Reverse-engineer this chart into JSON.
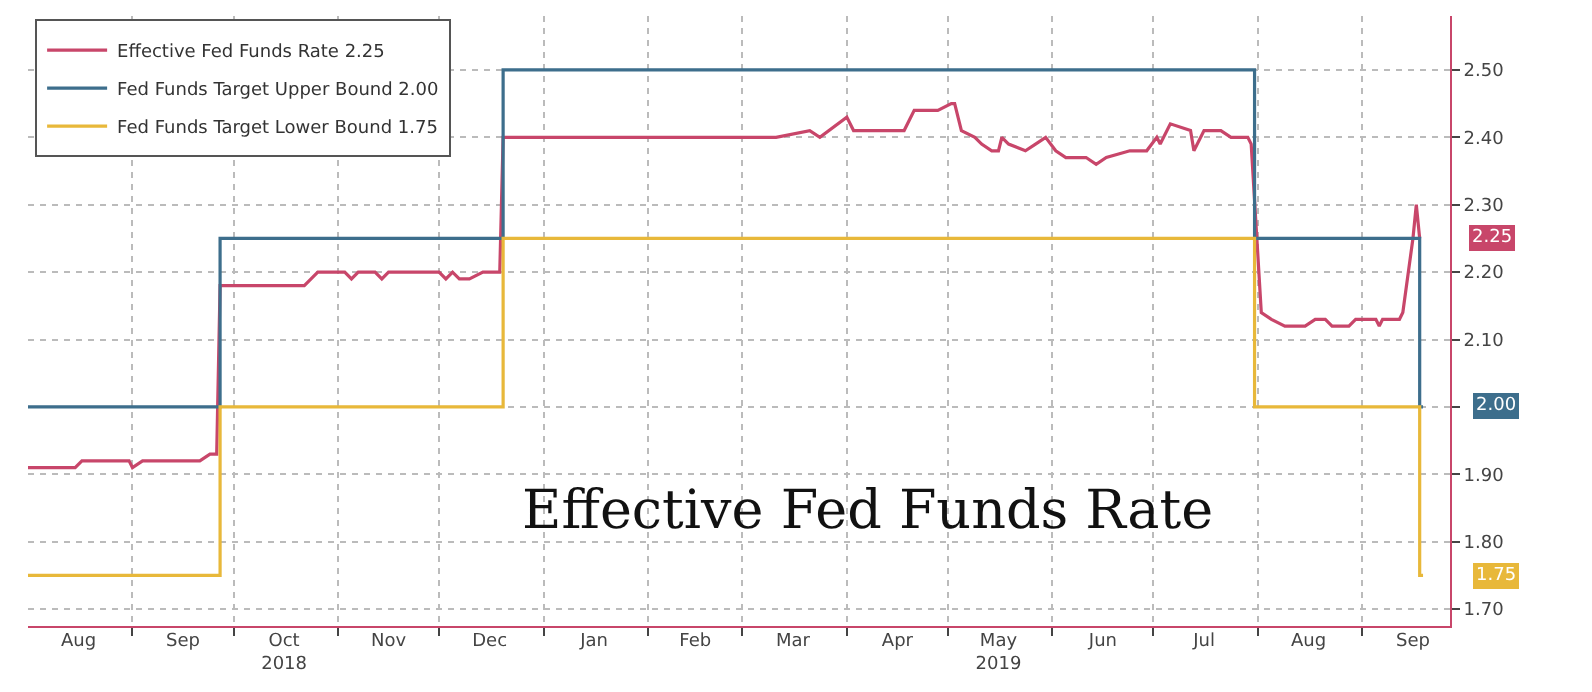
{
  "chart_data": {
    "type": "step",
    "title": "Effective Fed Funds Rate",
    "series": [
      {
        "name": "Effective Fed Funds Rate 2.25",
        "type": "line",
        "color": "#c8466a",
        "x": [
          "2018-08-01",
          "2018-08-15",
          "2018-08-17",
          "2018-08-31",
          "2018-09-01",
          "2018-09-04",
          "2018-09-21",
          "2018-09-24",
          "2018-09-26",
          "2018-09-27",
          "2018-10-22",
          "2018-10-24",
          "2018-10-26",
          "2018-11-03",
          "2018-11-05",
          "2018-11-07",
          "2018-11-12",
          "2018-11-14",
          "2018-11-16",
          "2018-12-01",
          "2018-12-03",
          "2018-12-05",
          "2018-12-07",
          "2018-12-10",
          "2018-12-14",
          "2018-12-19",
          "2018-12-20",
          "2019-03-11",
          "2019-03-21",
          "2019-03-24",
          "2019-04-01",
          "2019-04-03",
          "2019-04-18",
          "2019-04-21",
          "2019-04-28",
          "2019-05-02",
          "2019-05-03",
          "2019-05-05",
          "2019-05-09",
          "2019-05-11",
          "2019-05-14",
          "2019-05-16",
          "2019-05-17",
          "2019-05-19",
          "2019-05-24",
          "2019-05-27",
          "2019-05-30",
          "2019-06-02",
          "2019-06-05",
          "2019-06-11",
          "2019-06-14",
          "2019-06-17",
          "2019-06-24",
          "2019-06-29",
          "2019-07-02",
          "2019-07-03",
          "2019-07-06",
          "2019-07-12",
          "2019-07-13",
          "2019-07-16",
          "2019-07-21",
          "2019-07-24",
          "2019-07-29",
          "2019-07-30",
          "2019-08-02",
          "2019-08-05",
          "2019-08-09",
          "2019-08-15",
          "2019-08-18",
          "2019-08-21",
          "2019-08-23",
          "2019-08-28",
          "2019-08-30",
          "2019-09-05",
          "2019-09-06",
          "2019-09-07",
          "2019-09-12",
          "2019-09-13",
          "2019-09-16",
          "2019-09-17",
          "2019-09-18"
        ],
        "values": [
          1.91,
          1.91,
          1.92,
          1.92,
          1.91,
          1.92,
          1.92,
          1.93,
          1.93,
          2.18,
          2.18,
          2.19,
          2.2,
          2.2,
          2.19,
          2.2,
          2.2,
          2.19,
          2.2,
          2.2,
          2.19,
          2.2,
          2.19,
          2.19,
          2.2,
          2.2,
          2.4,
          2.4,
          2.41,
          2.4,
          2.43,
          2.41,
          2.41,
          2.44,
          2.44,
          2.45,
          2.45,
          2.41,
          2.4,
          2.39,
          2.38,
          2.38,
          2.4,
          2.39,
          2.38,
          2.39,
          2.4,
          2.38,
          2.37,
          2.37,
          2.36,
          2.37,
          2.38,
          2.38,
          2.4,
          2.39,
          2.42,
          2.41,
          2.38,
          2.41,
          2.41,
          2.4,
          2.4,
          2.39,
          2.14,
          2.13,
          2.12,
          2.12,
          2.13,
          2.13,
          2.12,
          2.12,
          2.13,
          2.13,
          2.12,
          2.13,
          2.13,
          2.14,
          2.25,
          2.3,
          2.25
        ]
      },
      {
        "name": "Fed Funds Target Upper Bound 2.00",
        "color": "#3d6e8c",
        "x": [
          "2018-08-01",
          "2018-09-27",
          "2018-12-20",
          "2019-07-31",
          "2019-09-18",
          "2019-09-19"
        ],
        "values": [
          2.0,
          2.25,
          2.5,
          2.25,
          2.0,
          2.0
        ]
      },
      {
        "name": "Fed Funds Target Lower Bound 1.75",
        "color": "#e8b83a",
        "x": [
          "2018-08-01",
          "2018-09-27",
          "2018-12-20",
          "2019-07-31",
          "2019-09-18",
          "2019-09-19"
        ],
        "values": [
          1.75,
          2.0,
          2.25,
          2.0,
          1.75,
          1.75
        ]
      }
    ],
    "annotations": [
      {
        "text": "2.25",
        "x": "2019-09-18",
        "y": 2.25
      },
      {
        "text": "2.00",
        "x": "2019-09-19",
        "y": 2.0
      },
      {
        "text": "1.75",
        "x": "2019-09-19",
        "y": 1.75
      }
    ],
    "xlim": [
      "2018-08-01",
      "2019-09-27"
    ],
    "xticks": [
      {
        "value": "2018-08-16",
        "label": "Aug"
      },
      {
        "value": "2018-09-01",
        "label": null
      },
      {
        "value": "2018-09-16",
        "label": "Sep"
      },
      {
        "value": "2018-10-01",
        "label": null
      },
      {
        "value": "2018-10-16",
        "label": "Oct\n2018"
      },
      {
        "value": "2018-11-01",
        "label": null
      },
      {
        "value": "2018-11-16",
        "label": "Nov"
      },
      {
        "value": "2018-12-01",
        "label": null
      },
      {
        "value": "2018-12-16",
        "label": "Dec"
      },
      {
        "value": "2019-01-01",
        "label": null
      },
      {
        "value": "2019-01-16",
        "label": "Jan"
      },
      {
        "value": "2019-02-01",
        "label": null
      },
      {
        "value": "2019-02-15",
        "label": "Feb"
      },
      {
        "value": "2019-03-01",
        "label": null
      },
      {
        "value": "2019-03-16",
        "label": "Mar"
      },
      {
        "value": "2019-04-01",
        "label": null
      },
      {
        "value": "2019-04-16",
        "label": "Apr"
      },
      {
        "value": "2019-05-01",
        "label": null
      },
      {
        "value": "2019-05-16",
        "label": "May\n2019"
      },
      {
        "value": "2019-06-01",
        "label": null
      },
      {
        "value": "2019-06-16",
        "label": "Jun"
      },
      {
        "value": "2019-07-01",
        "label": null
      },
      {
        "value": "2019-07-16",
        "label": "Jul"
      },
      {
        "value": "2019-08-01",
        "label": null
      },
      {
        "value": "2019-08-16",
        "label": "Aug"
      },
      {
        "value": "2019-09-01",
        "label": null
      },
      {
        "value": "2019-09-16",
        "label": "Sep"
      }
    ],
    "ylim": [
      1.675,
      2.58
    ],
    "yticks": [
      {
        "value": 1.7,
        "label": "1.70"
      },
      {
        "value": 1.8,
        "label": "1.80"
      },
      {
        "value": 1.9,
        "label": "1.90"
      },
      {
        "value": 2.0,
        "label": null
      },
      {
        "value": 2.1,
        "label": "2.10"
      },
      {
        "value": 2.2,
        "label": "2.20"
      },
      {
        "value": 2.3,
        "label": "2.30"
      },
      {
        "value": 2.4,
        "label": "2.40"
      },
      {
        "value": 2.5,
        "label": "2.50"
      }
    ],
    "grid": true,
    "legend": "top left",
    "line_style": "solid",
    "marker": "none"
  }
}
